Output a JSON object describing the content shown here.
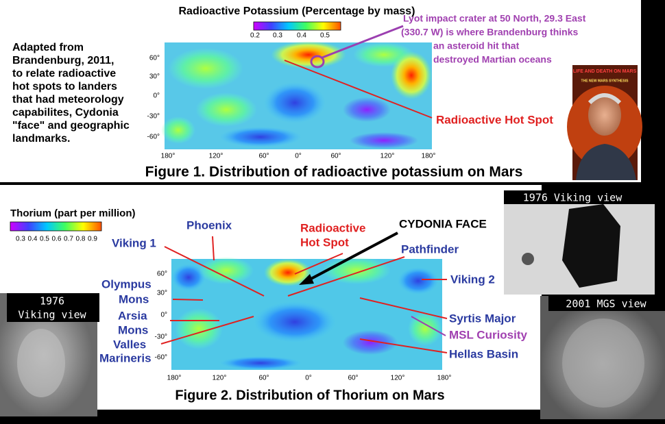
{
  "figure1": {
    "legend_title": "Radioactive Potassium (Percentage by mass)",
    "legend_ticks": [
      "0.2",
      "0.3",
      "0.4",
      "0.5"
    ],
    "note_lines": [
      "Adapted from",
      "Brandenburg, 2011,",
      "to relate radioactive",
      "hot spots to landers",
      "that had meteorology",
      "capabilites, Cydonia",
      "\"face\" and geographic",
      "landmarks."
    ],
    "crater_lines": [
      "Lyot impact crater at  50 North, 29.3 East",
      "(330.7 W)  is where  Brandenburg thinks",
      "an asteroid hit that",
      "destroyed Martian oceans"
    ],
    "hot_spot": "Radioactive Hot Spot",
    "lat_labels": [
      "60°",
      "30°",
      "0°",
      "-30°",
      "-60°"
    ],
    "lon_labels": [
      "180°",
      "120°",
      "60°",
      "0°",
      "60°",
      "120°",
      "180°"
    ],
    "caption": "Figure 1. Distribution of radioactive potassium on Mars",
    "book_title": "LIFE AND DEATH ON MARS",
    "book_subtitle": "THE NEW MARS SYNTHESIS"
  },
  "figure2": {
    "legend_title": "Thorium (part per million)",
    "legend_ticks": [
      "0.3",
      "0.4",
      "0.5",
      "0.6",
      "0.7",
      "0.8",
      "0.9"
    ],
    "labels": {
      "phoenix": "Phoenix",
      "viking1": "Viking 1",
      "olympus": [
        "Olympus",
        "Mons"
      ],
      "arsia": [
        "Arsia",
        "Mons"
      ],
      "valles": [
        "Valles",
        "Marineris"
      ],
      "hot_spot": [
        "Radioactive",
        "Hot Spot"
      ],
      "cydonia": "CYDONIA FACE",
      "pathfinder": "Pathfinder",
      "viking2": "Viking 2",
      "syrtis": "Syrtis Major",
      "msl": "MSL Curiosity",
      "hellas": "Hellas Basin"
    },
    "lat_labels": [
      "60°",
      "30°",
      "0°",
      "-30°",
      "-60°"
    ],
    "lon_labels": [
      "180°",
      "120°",
      "60°",
      "0°",
      "60°",
      "120°",
      "180°"
    ],
    "caption": "Figure 2. Distribution of Thorium on Mars"
  },
  "photos": {
    "top_right": "1976 Viking view",
    "left": [
      "1976",
      "Viking view"
    ],
    "bottom_right": "2001 MGS view"
  }
}
